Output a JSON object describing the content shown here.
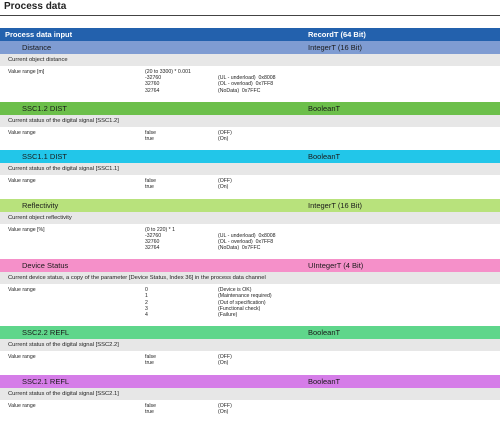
{
  "title": "Process data",
  "header": {
    "label": "Process data input",
    "type": "RecordT (64 Bit)",
    "color": "#2361ad"
  },
  "sections": [
    {
      "name": "Distance",
      "type": "IntegerT (16 Bit)",
      "color": "#7f9cd2",
      "description": "Current object distance",
      "value_label": "Value range [m]",
      "values": [
        [
          "(20 to 3300) * 0.001",
          ""
        ],
        [
          "-32760",
          "(UL - underload)  0x8008"
        ],
        [
          "32760",
          "(OL - overload)  0x7FF8"
        ],
        [
          "32764",
          "(NoData)  0x7FFC"
        ]
      ]
    },
    {
      "name": "SSC1.2 DIST",
      "type": "BooleanT",
      "color": "#6cbf4a",
      "description": "Current status of the digital signal [SSC1.2]",
      "value_label": "Value range",
      "values": [
        [
          "false",
          "(OFF)"
        ],
        [
          "true",
          "(On)"
        ]
      ]
    },
    {
      "name": "SSC1.1 DIST",
      "type": "BooleanT",
      "color": "#22c6e9",
      "description": "Current status of the digital signal [SSC1.1]",
      "value_label": "Value range",
      "values": [
        [
          "false",
          "(OFF)"
        ],
        [
          "true",
          "(On)"
        ]
      ]
    },
    {
      "name": "Reflectivity",
      "type": "IntegerT (16 Bit)",
      "color": "#b8e27c",
      "description": "Current object reflectivity",
      "value_label": "Value range [%]",
      "values": [
        [
          "(0 to 220) * 1",
          ""
        ],
        [
          "-32760",
          "(UL - underload)  0x8008"
        ],
        [
          "32760",
          "(OL - overload)  0x7FF8"
        ],
        [
          "32764",
          "(NoData)  0x7FFC"
        ]
      ]
    },
    {
      "name": "Device Status",
      "type": "UIntegerT (4 Bit)",
      "color": "#f590c9",
      "description": "Current device status, a copy of the parameter [Device Status, Index 36] in the process data channel",
      "value_label": "Value range",
      "values": [
        [
          "0",
          "(Device is OK)"
        ],
        [
          "1",
          "(Maintenance required)"
        ],
        [
          "2",
          "(Out of specification)"
        ],
        [
          "3",
          "(Functional check)"
        ],
        [
          "4",
          "(Failure)"
        ]
      ]
    },
    {
      "name": "SSC2.2 REFL",
      "type": "BooleanT",
      "color": "#5fd68b",
      "description": "Current status of the digital signal [SSC2.2]",
      "value_label": "Value range",
      "values": [
        [
          "false",
          "(OFF)"
        ],
        [
          "true",
          "(On)"
        ]
      ]
    },
    {
      "name": "SSC2.1 REFL",
      "type": "BooleanT",
      "color": "#d57de8",
      "description": "Current status of the digital signal [SSC2.1]",
      "value_label": "Value range",
      "values": [
        [
          "false",
          "(OFF)"
        ],
        [
          "true",
          "(On)"
        ]
      ]
    }
  ]
}
